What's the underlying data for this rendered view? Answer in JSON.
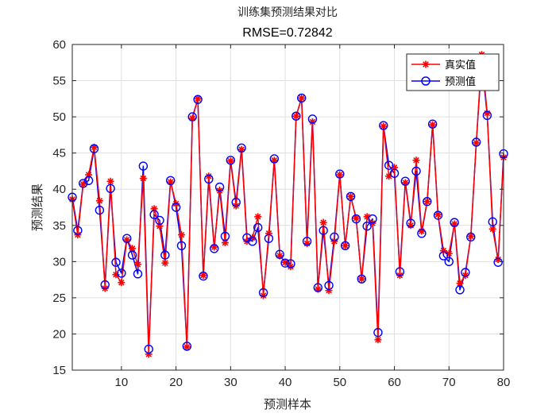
{
  "chart_data": {
    "type": "line",
    "title": "训练集预测结果对比",
    "subtitle": "RMSE=0.72842",
    "xlabel": "预测样本",
    "ylabel": "预测结果",
    "xlim": [
      1,
      80
    ],
    "ylim": [
      15,
      60
    ],
    "xticks": [
      10,
      20,
      30,
      40,
      50,
      60,
      70,
      80
    ],
    "yticks": [
      15,
      20,
      25,
      30,
      35,
      40,
      45,
      50,
      55,
      60
    ],
    "grid": true,
    "legend_position": "top-right",
    "colors": {
      "actual": "#ff0000",
      "predicted": "#0000ff",
      "grid": "#dfdfdf",
      "axis": "#262626"
    },
    "x": [
      1,
      2,
      3,
      4,
      5,
      6,
      7,
      8,
      9,
      10,
      11,
      12,
      13,
      14,
      15,
      16,
      17,
      18,
      19,
      20,
      21,
      22,
      23,
      24,
      25,
      26,
      27,
      28,
      29,
      30,
      31,
      32,
      33,
      34,
      35,
      36,
      37,
      38,
      39,
      40,
      41,
      42,
      43,
      44,
      45,
      46,
      47,
      48,
      49,
      50,
      51,
      52,
      53,
      54,
      55,
      56,
      57,
      58,
      59,
      60,
      61,
      62,
      63,
      64,
      65,
      66,
      67,
      68,
      69,
      70,
      71,
      72,
      73,
      74,
      75,
      76,
      77,
      78,
      79,
      80
    ],
    "series": [
      {
        "name": "真实值",
        "marker": "asterisk",
        "values": [
          38.6,
          33.7,
          40.7,
          42.0,
          45.8,
          38.4,
          26.3,
          41.1,
          28.2,
          27.1,
          33.0,
          31.8,
          29.6,
          41.5,
          17.2,
          37.3,
          34.9,
          29.8,
          41.0,
          38.0,
          33.7,
          18.2,
          49.8,
          52.5,
          28.1,
          41.8,
          32.0,
          39.8,
          32.6,
          43.9,
          37.7,
          45.5,
          32.8,
          33.3,
          36.2,
          25.3,
          33.9,
          44.0,
          30.8,
          29.9,
          29.3,
          50.1,
          52.6,
          32.5,
          49.3,
          26.2,
          35.4,
          26.0,
          32.8,
          42.0,
          32.2,
          39.0,
          36.0,
          27.6,
          36.2,
          35.3,
          19.2,
          48.7,
          41.8,
          43.0,
          28.1,
          40.9,
          35.0,
          44.0,
          34.2,
          38.3,
          48.9,
          36.5,
          31.5,
          31.1,
          35.2,
          27.0,
          28.1,
          33.5,
          46.4,
          58.6,
          50.5,
          34.5,
          30.3,
          44.4
        ]
      },
      {
        "name": "预测值",
        "marker": "circle",
        "values": [
          38.9,
          34.3,
          40.8,
          41.2,
          45.6,
          37.1,
          26.8,
          40.1,
          29.9,
          28.4,
          33.2,
          30.9,
          28.3,
          43.2,
          17.9,
          36.5,
          35.7,
          30.9,
          41.2,
          37.5,
          32.2,
          18.3,
          50.0,
          52.4,
          28.0,
          41.4,
          31.8,
          40.3,
          33.5,
          44.0,
          38.2,
          45.7,
          33.3,
          32.8,
          34.7,
          25.7,
          33.2,
          44.2,
          31.0,
          29.8,
          29.7,
          50.1,
          52.6,
          32.8,
          49.7,
          26.4,
          34.3,
          26.7,
          33.4,
          42.1,
          32.2,
          39.0,
          35.9,
          27.6,
          34.9,
          35.9,
          20.2,
          48.8,
          43.3,
          42.2,
          28.6,
          41.1,
          35.3,
          42.5,
          33.9,
          38.3,
          49.0,
          36.4,
          30.8,
          30.0,
          35.4,
          26.1,
          28.5,
          33.4,
          46.5,
          57.7,
          50.2,
          35.5,
          29.9,
          44.9
        ]
      }
    ]
  }
}
